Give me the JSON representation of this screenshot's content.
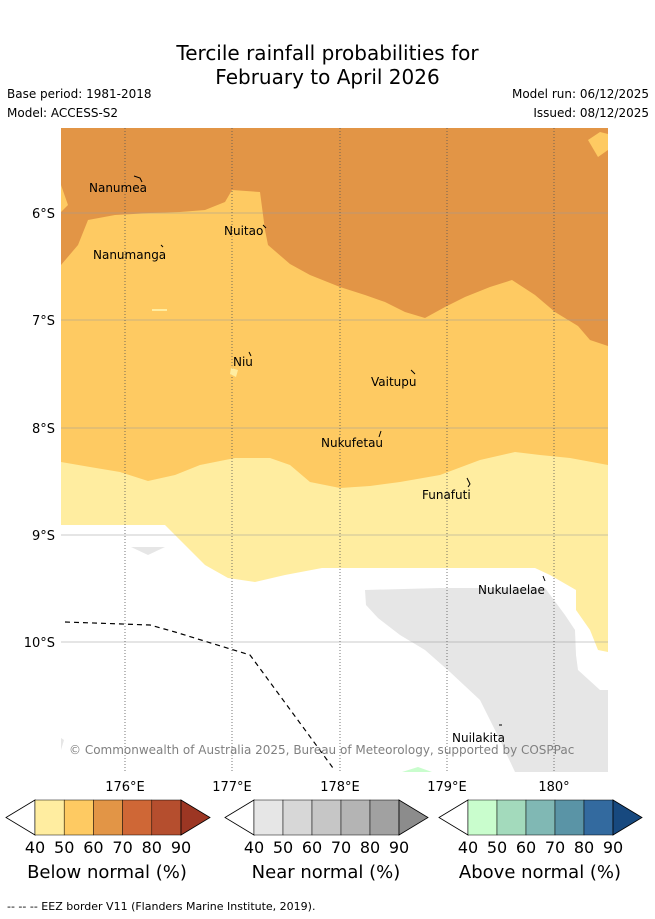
{
  "title_line1": "Tercile rainfall probabilities for",
  "title_line2": "February to April 2026",
  "base_period": "Base period: 1981-2018",
  "model": "Model: ACCESS-S2",
  "model_run": "Model run: 06/12/2025",
  "issued": "Issued: 08/12/2025",
  "map": {
    "lat_labels": [
      "6°S",
      "7°S",
      "8°S",
      "9°S",
      "10°S"
    ],
    "lon_labels": [
      "176°E",
      "177°E",
      "178°E",
      "179°E",
      "180°"
    ],
    "places": [
      "Nanumea",
      "Nuitao",
      "Nanumanga",
      "Niu",
      "Vaitupu",
      "Nukufetau",
      "Funafuti",
      "Nukulaelae",
      "Nuilakita"
    ],
    "copyright": "© Commonwealth of Australia 2025, Bureau of Meteorology, supported by COSPPac"
  },
  "colorbars": {
    "ticks": [
      "40",
      "50",
      "60",
      "70",
      "80",
      "90"
    ],
    "below": {
      "title": "Below normal (%)",
      "colors": [
        "#ffffff",
        "#ffeda0",
        "#feca62",
        "#e29546",
        "#cf6736",
        "#b54e2e",
        "#9c3623"
      ]
    },
    "near": {
      "title": "Near normal (%)",
      "colors": [
        "#ffffff",
        "#e6e6e6",
        "#d7d7d7",
        "#c6c6c6",
        "#b4b4b4",
        "#a1a1a1",
        "#8c8c8c"
      ]
    },
    "above": {
      "title": "Above normal (%)",
      "colors": [
        "#ffffff",
        "#c9fdcd",
        "#a3dabc",
        "#80b8b4",
        "#5a94a6",
        "#336a9f",
        "#17497f"
      ]
    }
  },
  "eez_legend": "-- -- -- EEZ border V11 (Flanders Marine Institute, 2019)."
}
